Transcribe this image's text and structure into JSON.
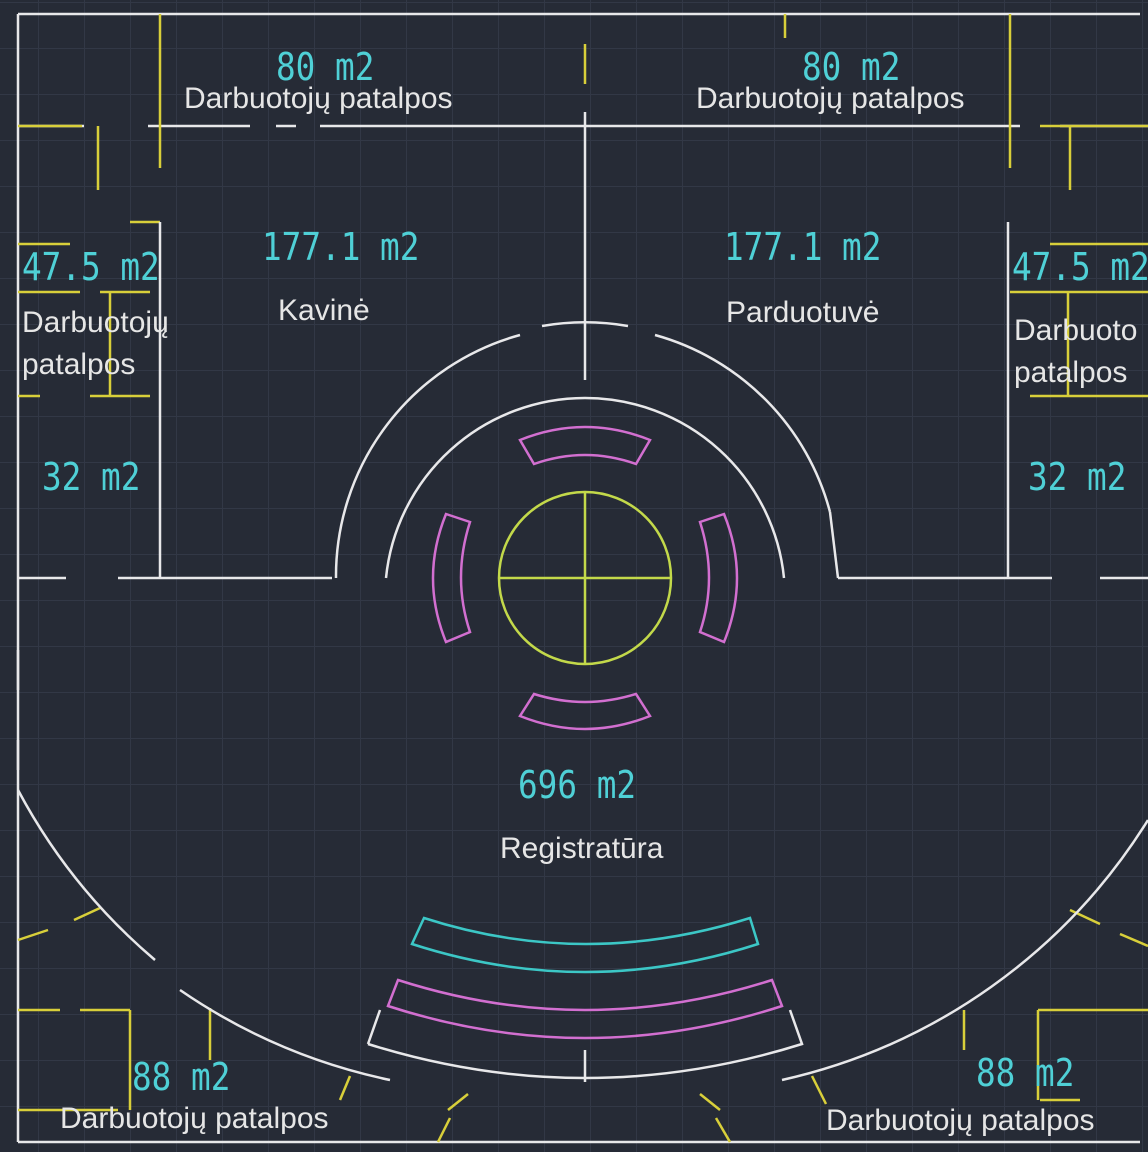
{
  "rooms": {
    "staff_top_left": {
      "area": "80 m2",
      "name": "Darbuotojų patalpos"
    },
    "staff_top_right": {
      "area": "80 m2",
      "name": "Darbuotojų patalpos"
    },
    "staff_side_left": {
      "area": "47.5 m2",
      "name_line1": "Darbuotojų",
      "name_line2": "patalpos"
    },
    "staff_side_right": {
      "area": "47.5 m2",
      "name_line1": "Darbuoto",
      "name_line2": "patalpos"
    },
    "cafe": {
      "area": "177.1 m2",
      "name": "Kavinė"
    },
    "shop": {
      "area": "177.1 m2",
      "name": "Parduotuvė"
    },
    "small_left": {
      "area": "32 m2"
    },
    "small_right": {
      "area": "32 m2"
    },
    "reception": {
      "area": "696 m2",
      "name": "Registratūra"
    },
    "staff_bottom_left": {
      "area": "88 m2",
      "name": "Darbuotojų patalpos"
    },
    "staff_bottom_right": {
      "area": "88 m2",
      "name": "Darbuotojų patalpos"
    }
  },
  "colors": {
    "background": "#262b36",
    "walls": "#e8e8ea",
    "doors": "#d8cf3a",
    "furniture_magenta": "#d26fd0",
    "furniture_cyan": "#3cc7c6",
    "center_fixture": "#c3d94a",
    "area_text": "#4fd0d6",
    "name_text": "#e6e6e6"
  }
}
